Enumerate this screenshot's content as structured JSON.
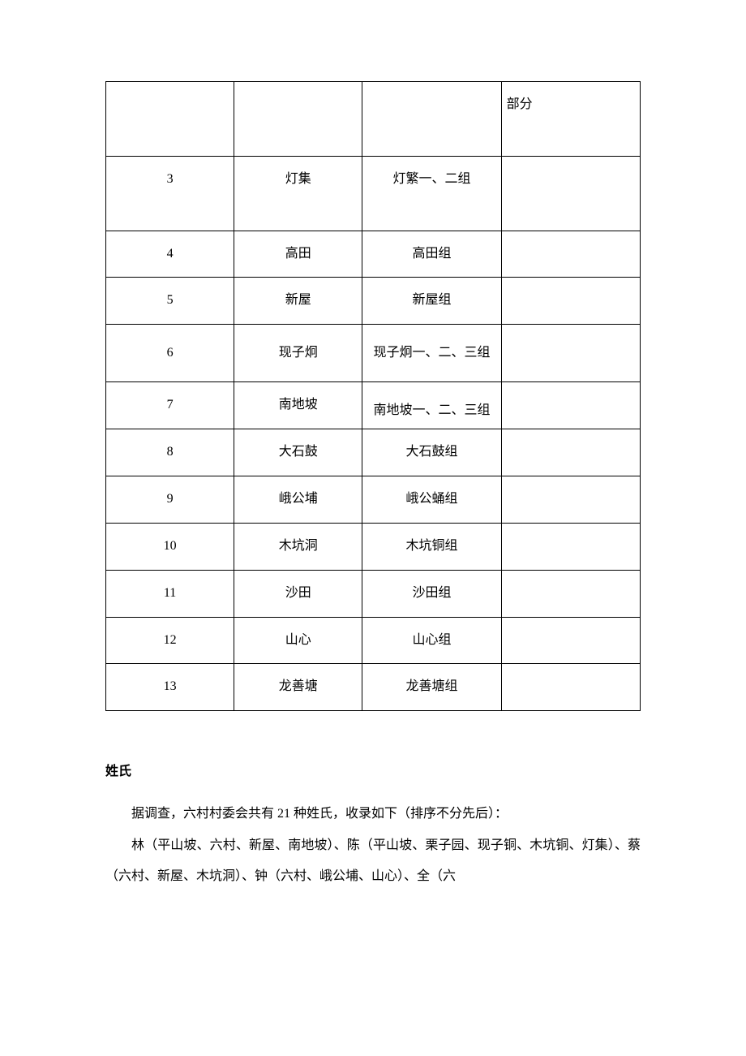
{
  "table": {
    "rows": [
      {
        "num": "",
        "name": "",
        "group": "",
        "note": "部分"
      },
      {
        "num": "3",
        "name": "灯集",
        "group": "灯繁一、二组",
        "note": ""
      },
      {
        "num": "4",
        "name": "高田",
        "group": "高田组",
        "note": ""
      },
      {
        "num": "5",
        "name": "新屋",
        "group": "新屋组",
        "note": ""
      },
      {
        "num": "6",
        "name": "现子炯",
        "group": "现子炯一、二、三组",
        "note": ""
      },
      {
        "num": "7",
        "name": "南地坡",
        "group": "南地坡一、二、三组",
        "note": ""
      },
      {
        "num": "8",
        "name": "大石鼓",
        "group": "大石鼓组",
        "note": ""
      },
      {
        "num": "9",
        "name": "峨公埔",
        "group": "峨公蛹组",
        "note": ""
      },
      {
        "num": "10",
        "name": "木坑洞",
        "group": "木坑铜组",
        "note": ""
      },
      {
        "num": "11",
        "name": "沙田",
        "group": "沙田组",
        "note": ""
      },
      {
        "num": "12",
        "name": "山心",
        "group": "山心组",
        "note": ""
      },
      {
        "num": "13",
        "name": "龙善塘",
        "group": "龙善塘组",
        "note": ""
      }
    ]
  },
  "heading": "姓氏",
  "para1_pre": "据调查，六村村委会共有 ",
  "para1_num": "21",
  "para1_post": " 种姓氏，收录如下（排序不分先后）：",
  "para2": "林（平山坡、六村、新屋、南地坡）、陈（平山坡、栗子园、现子铜、木坑铜、灯集）、蔡（六村、新屋、木坑洞）、钟（六村、峨公埔、山心）、全（六"
}
